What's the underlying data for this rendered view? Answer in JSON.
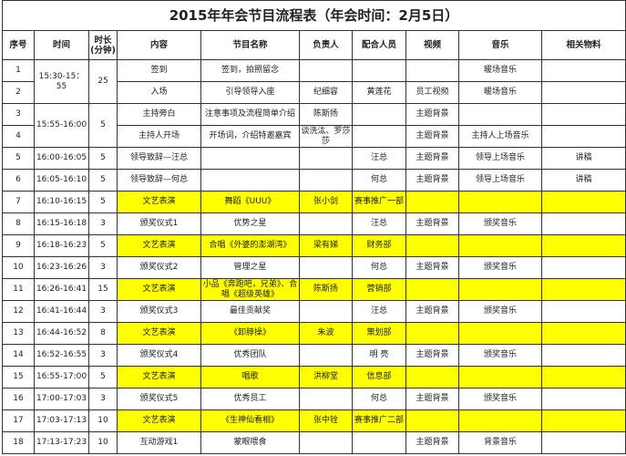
{
  "title": "2015年年会节目流程表（年会时间：2月5日）",
  "columns": [
    "序号",
    "时间",
    "时长(分钟)",
    "内容",
    "节目名称",
    "负责人",
    "配合人员",
    "视频",
    "音乐",
    "相关物料"
  ],
  "highlight_color": "#ffff00",
  "rows": [
    {
      "no": "1",
      "time": "15:30-15：55",
      "time_span": 2,
      "dur": "25",
      "dur_span": 2,
      "content": "签到",
      "name": "签到，拍照留念",
      "owner": "",
      "support": "",
      "video": "",
      "music": "暖场音乐",
      "material": "",
      "hl": false
    },
    {
      "no": "2",
      "content": "入场",
      "name": "引导领导入座",
      "owner": "纪细容",
      "support": "黄莲花",
      "video": "员工视频",
      "music": "暖场音乐",
      "material": "",
      "hl": false
    },
    {
      "no": "3",
      "time": "15:55-16:00",
      "time_span": 2,
      "dur": "5",
      "dur_span": 2,
      "content": "主持旁白",
      "name": "注意事项及流程简单介绍",
      "owner": "陈斯扬",
      "support": "",
      "video": "主题背景",
      "music": "",
      "material": "",
      "hl": false
    },
    {
      "no": "4",
      "content": "主持人开场",
      "name": "开场词，介绍特邀嘉宾",
      "owner": "谈洗汯、罗莎莎",
      "support": "",
      "video": "主题背景",
      "music": "主持人上场音乐",
      "material": "",
      "hl": false
    },
    {
      "no": "5",
      "time": "16:00-16:05",
      "dur": "5",
      "content": "领导致辞—汪总",
      "name": "",
      "owner": "",
      "support": "汪总",
      "video": "主题背景",
      "music": "领导上场音乐",
      "material": "讲稿",
      "hl": false
    },
    {
      "no": "6",
      "time": "16:05-16:10",
      "dur": "5",
      "content": "领导致辞—何总",
      "name": "",
      "owner": "",
      "support": "何总",
      "video": "主题背景",
      "music": "领导上场音乐",
      "material": "讲稿",
      "hl": false
    },
    {
      "no": "7",
      "time": "16:10-16:15",
      "dur": "5",
      "content": "文艺表演",
      "name": "舞蹈《UUU》",
      "owner": "张小剑",
      "support": "赛事推广一部",
      "video": "",
      "music": "",
      "material": "",
      "hl": true
    },
    {
      "no": "8",
      "time": "16:15-16:18",
      "dur": "3",
      "content": "颁奖仪式1",
      "name": "优势之星",
      "owner": "",
      "support": "汪总",
      "video": "主题背景",
      "music": "颁奖音乐",
      "material": "",
      "hl": false
    },
    {
      "no": "9",
      "time": "16:18-16:23",
      "dur": "5",
      "content": "文艺表演",
      "name": "合唱《外婆的澎湖湾》",
      "owner": "梁有娣",
      "support": "财务部",
      "video": "",
      "music": "",
      "material": "",
      "hl": true
    },
    {
      "no": "10",
      "time": "16:23-16:26",
      "dur": "3",
      "content": "颁奖仪式2",
      "name": "管理之星",
      "owner": "",
      "support": "何总",
      "video": "主题背景",
      "music": "颁奖音乐",
      "material": "",
      "hl": false
    },
    {
      "no": "11",
      "time": "16:26-16:41",
      "dur": "15",
      "content": "文艺表演",
      "name": "小品《奔跑吧，兄弟》、合唱《超级英雄》",
      "owner": "陈斯扬",
      "support": "营销部",
      "video": "",
      "music": "",
      "material": "",
      "hl": true
    },
    {
      "no": "12",
      "time": "16:41-16:44",
      "dur": "3",
      "content": "颁奖仪式3",
      "name": "最佳贡献奖",
      "owner": "",
      "support": "汪总",
      "video": "主题背景",
      "music": "颁奖音乐",
      "material": "",
      "hl": false
    },
    {
      "no": "13",
      "time": "16:44-16:52",
      "dur": "8",
      "content": "文艺表演",
      "name": "《卸脖操》",
      "owner": "朱波",
      "support": "策划部",
      "video": "",
      "music": "",
      "material": "",
      "hl": true
    },
    {
      "no": "14",
      "time": "16:52-16:55",
      "dur": "3",
      "content": "颁奖仪式4",
      "name": "优秀团队",
      "owner": "",
      "support": "明 亮",
      "video": "主题背景",
      "music": "颁奖音乐",
      "material": "",
      "hl": false
    },
    {
      "no": "15",
      "time": "16:55-17:00",
      "dur": "5",
      "content": "文艺表演",
      "name": "唱歌",
      "owner": "洪柳堂",
      "support": "信息部",
      "video": "",
      "music": "",
      "material": "",
      "hl": true
    },
    {
      "no": "16",
      "time": "17:00-17:03",
      "dur": "3",
      "content": "颁奖仪式5",
      "name": "优秀员工",
      "owner": "",
      "support": "何总",
      "video": "主题背景",
      "music": "颁奖音乐",
      "material": "",
      "hl": false
    },
    {
      "no": "17",
      "time": "17:03-17:13",
      "dur": "10",
      "content": "文艺表演",
      "name": "《生神仙看相》",
      "owner": "张中铨",
      "support": "赛事推广二部",
      "video": "",
      "music": "",
      "material": "",
      "hl": true
    },
    {
      "no": "18",
      "time": "17:13-17:23",
      "dur": "10",
      "content": "互动游戏1",
      "name": "蒙眼喂食",
      "owner": "",
      "support": "",
      "video": "主题背景",
      "music": "背景音乐",
      "material": "",
      "hl": false
    }
  ]
}
